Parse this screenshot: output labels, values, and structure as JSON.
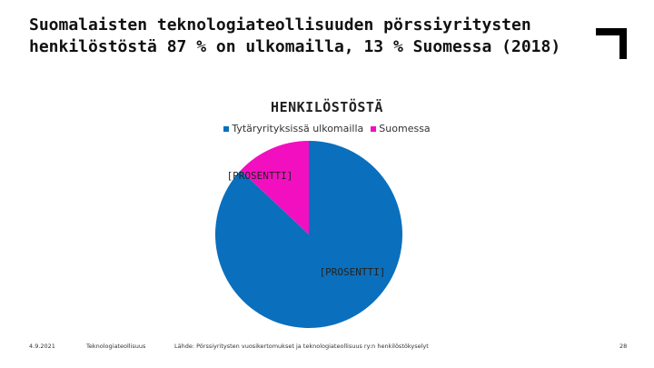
{
  "slide": {
    "title": "Suomalaisten teknologiateollisuuden pörssiyritysten henkilöstöstä 87 % on ulkomailla, 13 % Suomessa (2018)"
  },
  "footer": {
    "date": "4.9.2021",
    "organization": "Teknologiateollisuus",
    "source": "Lähde: Pörssiyritysten vuosikertomukset ja teknologiateollisuus ry:n henkilöstökyselyt",
    "page_number": "28"
  },
  "chart_data": {
    "type": "pie",
    "title": "HENKILÖSTÖSTÄ",
    "legend_position": "top",
    "slices": [
      {
        "label": "Tytäryrityksissä ulkomailla",
        "value": 87,
        "color": "#0a6fbd",
        "data_label": "[PROSENTTI]"
      },
      {
        "label": "Suomessa",
        "value": 13,
        "color": "#f20fbf",
        "data_label": "[PROSENTTI]"
      }
    ]
  },
  "colors": {
    "logo": "#000000",
    "text": "#111111"
  }
}
